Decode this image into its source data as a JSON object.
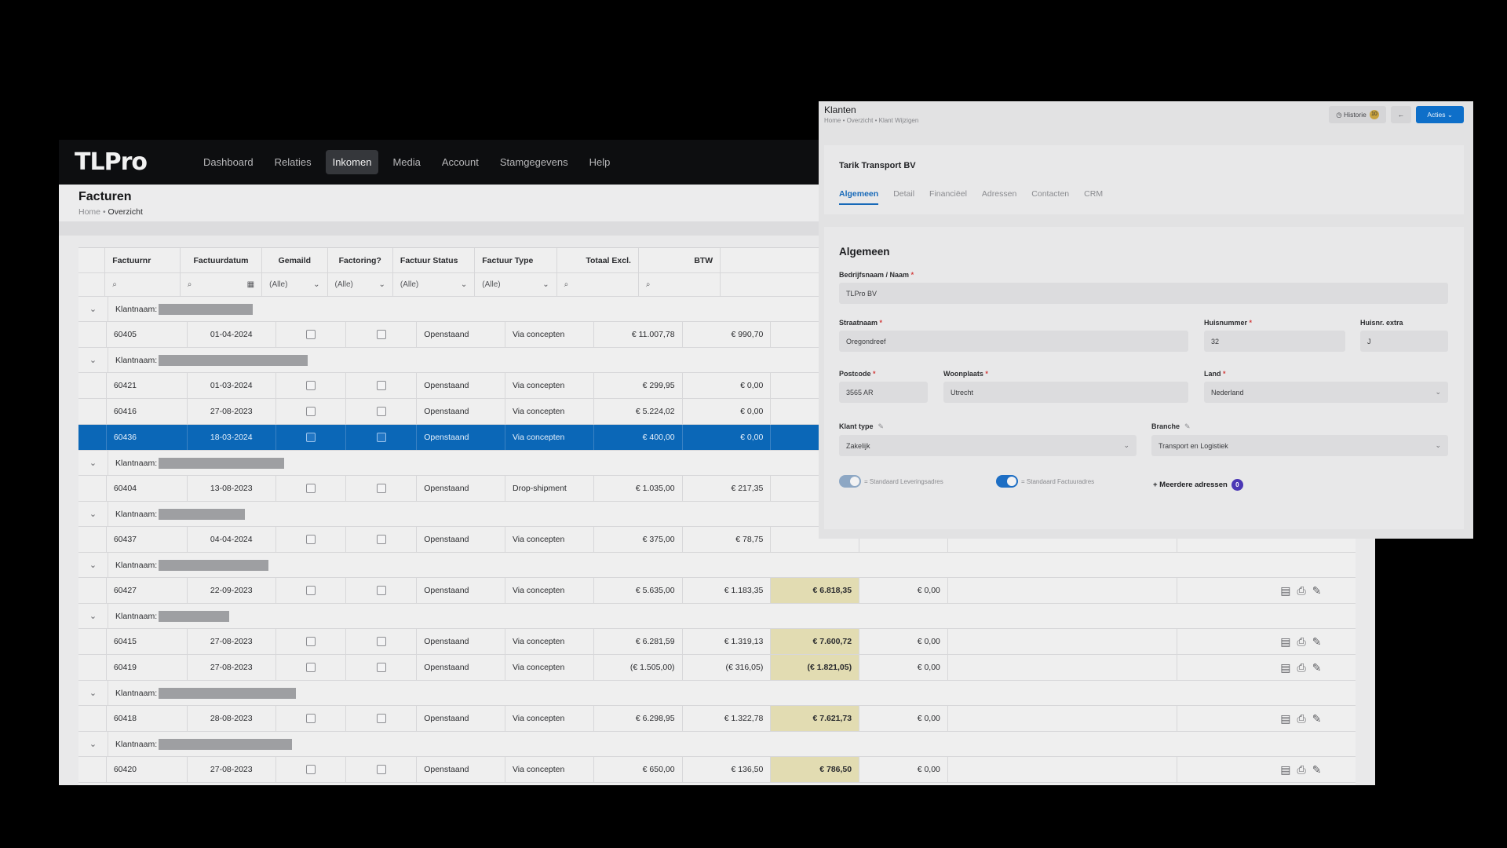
{
  "app": {
    "logo": "TLPro",
    "nav": [
      "Dashboard",
      "Relaties",
      "Inkomen",
      "Media",
      "Account",
      "Stamgegevens",
      "Help"
    ],
    "active_nav": "Inkomen",
    "page_title": "Facturen",
    "breadcrumb_home": "Home",
    "breadcrumb_sep": "•",
    "breadcrumb_current": "Overzicht"
  },
  "grid": {
    "columns": [
      "Factuurnr",
      "Factuurdatum",
      "Gemaild",
      "Factoring?",
      "Factuur Status",
      "Factuur Type",
      "Totaal Excl.",
      "BTW"
    ],
    "filter_all": "(Alle)",
    "group_label": "Klantnaam:",
    "rows": [
      {
        "kind": "group"
      },
      {
        "kind": "data",
        "nr": "60405",
        "date": "01-04-2024",
        "status": "Openstaand",
        "type": "Via concepten",
        "excl": "€ 11.007,78",
        "btw": "€ 990,70",
        "total": "",
        "extra": ""
      },
      {
        "kind": "group"
      },
      {
        "kind": "data",
        "nr": "60421",
        "date": "01-03-2024",
        "status": "Openstaand",
        "type": "Via concepten",
        "excl": "€ 299,95",
        "btw": "€ 0,00",
        "total": "",
        "extra": ""
      },
      {
        "kind": "data",
        "nr": "60416",
        "date": "27-08-2023",
        "status": "Openstaand",
        "type": "Via concepten",
        "excl": "€ 5.224,02",
        "btw": "€ 0,00",
        "total": "",
        "extra": ""
      },
      {
        "kind": "data",
        "nr": "60436",
        "date": "18-03-2024",
        "status": "Openstaand",
        "type": "Via concepten",
        "excl": "€ 400,00",
        "btw": "€ 0,00",
        "total": "",
        "extra": "",
        "selected": true
      },
      {
        "kind": "group"
      },
      {
        "kind": "data",
        "nr": "60404",
        "date": "13-08-2023",
        "status": "Openstaand",
        "type": "Drop-shipment",
        "excl": "€ 1.035,00",
        "btw": "€ 217,35",
        "total": "",
        "extra": ""
      },
      {
        "kind": "group"
      },
      {
        "kind": "data",
        "nr": "60437",
        "date": "04-04-2024",
        "status": "Openstaand",
        "type": "Via concepten",
        "excl": "€ 375,00",
        "btw": "€ 78,75",
        "total": "",
        "extra": ""
      },
      {
        "kind": "group"
      },
      {
        "kind": "data",
        "nr": "60427",
        "date": "22-09-2023",
        "status": "Openstaand",
        "type": "Via concepten",
        "excl": "€ 5.635,00",
        "btw": "€ 1.183,35",
        "total": "€ 6.818,35",
        "extra": "€ 0,00"
      },
      {
        "kind": "group"
      },
      {
        "kind": "data",
        "nr": "60415",
        "date": "27-08-2023",
        "status": "Openstaand",
        "type": "Via concepten",
        "excl": "€ 6.281,59",
        "btw": "€ 1.319,13",
        "total": "€ 7.600,72",
        "extra": "€ 0,00"
      },
      {
        "kind": "data",
        "nr": "60419",
        "date": "27-08-2023",
        "status": "Openstaand",
        "type": "Via concepten",
        "excl": "(€ 1.505,00)",
        "btw": "(€ 316,05)",
        "total": "(€ 1.821,05)",
        "extra": "€ 0,00"
      },
      {
        "kind": "group"
      },
      {
        "kind": "data",
        "nr": "60418",
        "date": "28-08-2023",
        "status": "Openstaand",
        "type": "Via concepten",
        "excl": "€ 6.298,95",
        "btw": "€ 1.322,78",
        "total": "€ 7.621,73",
        "extra": "€ 0,00"
      },
      {
        "kind": "group"
      },
      {
        "kind": "data",
        "nr": "60420",
        "date": "27-08-2023",
        "status": "Openstaand",
        "type": "Via concepten",
        "excl": "€ 650,00",
        "btw": "€ 136,50",
        "total": "€ 786,50",
        "extra": "€ 0,00"
      }
    ]
  },
  "klanten": {
    "title": "Klanten",
    "breadcrumb": "Home • Overzicht • Klant Wijzigen",
    "btn_historie": "Historie",
    "historie_count": "10",
    "btn_back": "←",
    "btn_acties": "Acties ⌄",
    "company": "Tarik Transport BV",
    "tabs": [
      "Algemeen",
      "Detail",
      "Financiëel",
      "Adressen",
      "Contacten",
      "CRM"
    ],
    "active_tab": "Algemeen",
    "section_title": "Algemeen",
    "labels": {
      "naam": "Bedrijfsnaam / Naam",
      "straat": "Straatnaam",
      "huisnr": "Huisnummer",
      "huisnr_extra": "Huisnr. extra",
      "postcode": "Postcode",
      "woonplaats": "Woonplaats",
      "land": "Land",
      "klanttype": "Klant type",
      "branche": "Branche"
    },
    "values": {
      "naam": "TLPro BV",
      "straat": "Oregondreef",
      "huisnr": "32",
      "huisnr_extra": "J",
      "postcode": "3565 AR",
      "woonplaats": "Utrecht",
      "land": "Nederland",
      "klanttype": "Zakelijk",
      "branche": "Transport en Logistiek"
    },
    "toggle_levering": "= Standaard Leveringsadres",
    "toggle_factuur": "= Standaard Factuuradres",
    "meerdere": "+ Meerdere adressen",
    "meerdere_count": "0"
  }
}
